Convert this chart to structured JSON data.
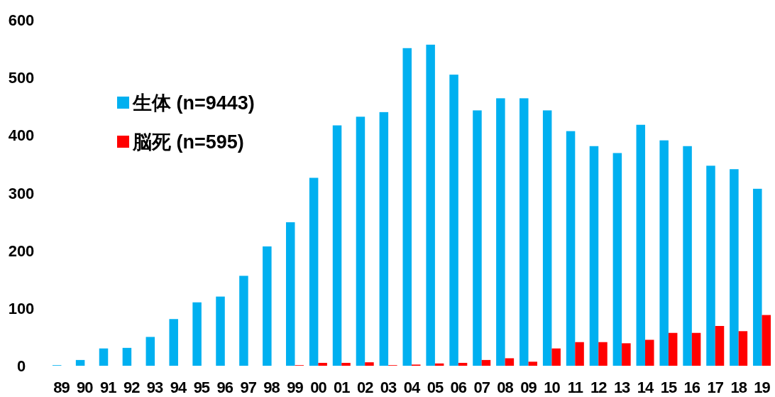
{
  "chart_data": {
    "type": "bar",
    "categories": [
      "89",
      "90",
      "91",
      "92",
      "93",
      "94",
      "95",
      "96",
      "97",
      "98",
      "99",
      "00",
      "01",
      "02",
      "03",
      "04",
      "05",
      "06",
      "07",
      "08",
      "09",
      "10",
      "11",
      "12",
      "13",
      "14",
      "15",
      "16",
      "17",
      "18",
      "19"
    ],
    "series": [
      {
        "name": "生体 (n=9443)",
        "color": "#00b0f0",
        "values": [
          1,
          10,
          30,
          31,
          50,
          81,
          110,
          120,
          156,
          207,
          249,
          326,
          417,
          432,
          440,
          551,
          557,
          505,
          443,
          464,
          464,
          443,
          407,
          381,
          369,
          418,
          391,
          381,
          347,
          341,
          307
        ]
      },
      {
        "name": "脳死 (n=595)",
        "color": "#ff0000",
        "values": [
          0,
          0,
          0,
          0,
          0,
          0,
          0,
          0,
          0,
          0,
          1,
          5,
          5,
          6,
          1,
          2,
          4,
          5,
          10,
          13,
          7,
          30,
          41,
          41,
          39,
          45,
          57,
          57,
          69,
          60,
          88
        ]
      }
    ],
    "ylim": [
      0,
      600
    ],
    "yticks": [
      0,
      100,
      200,
      300,
      400,
      500,
      600
    ],
    "legend": "top left"
  }
}
